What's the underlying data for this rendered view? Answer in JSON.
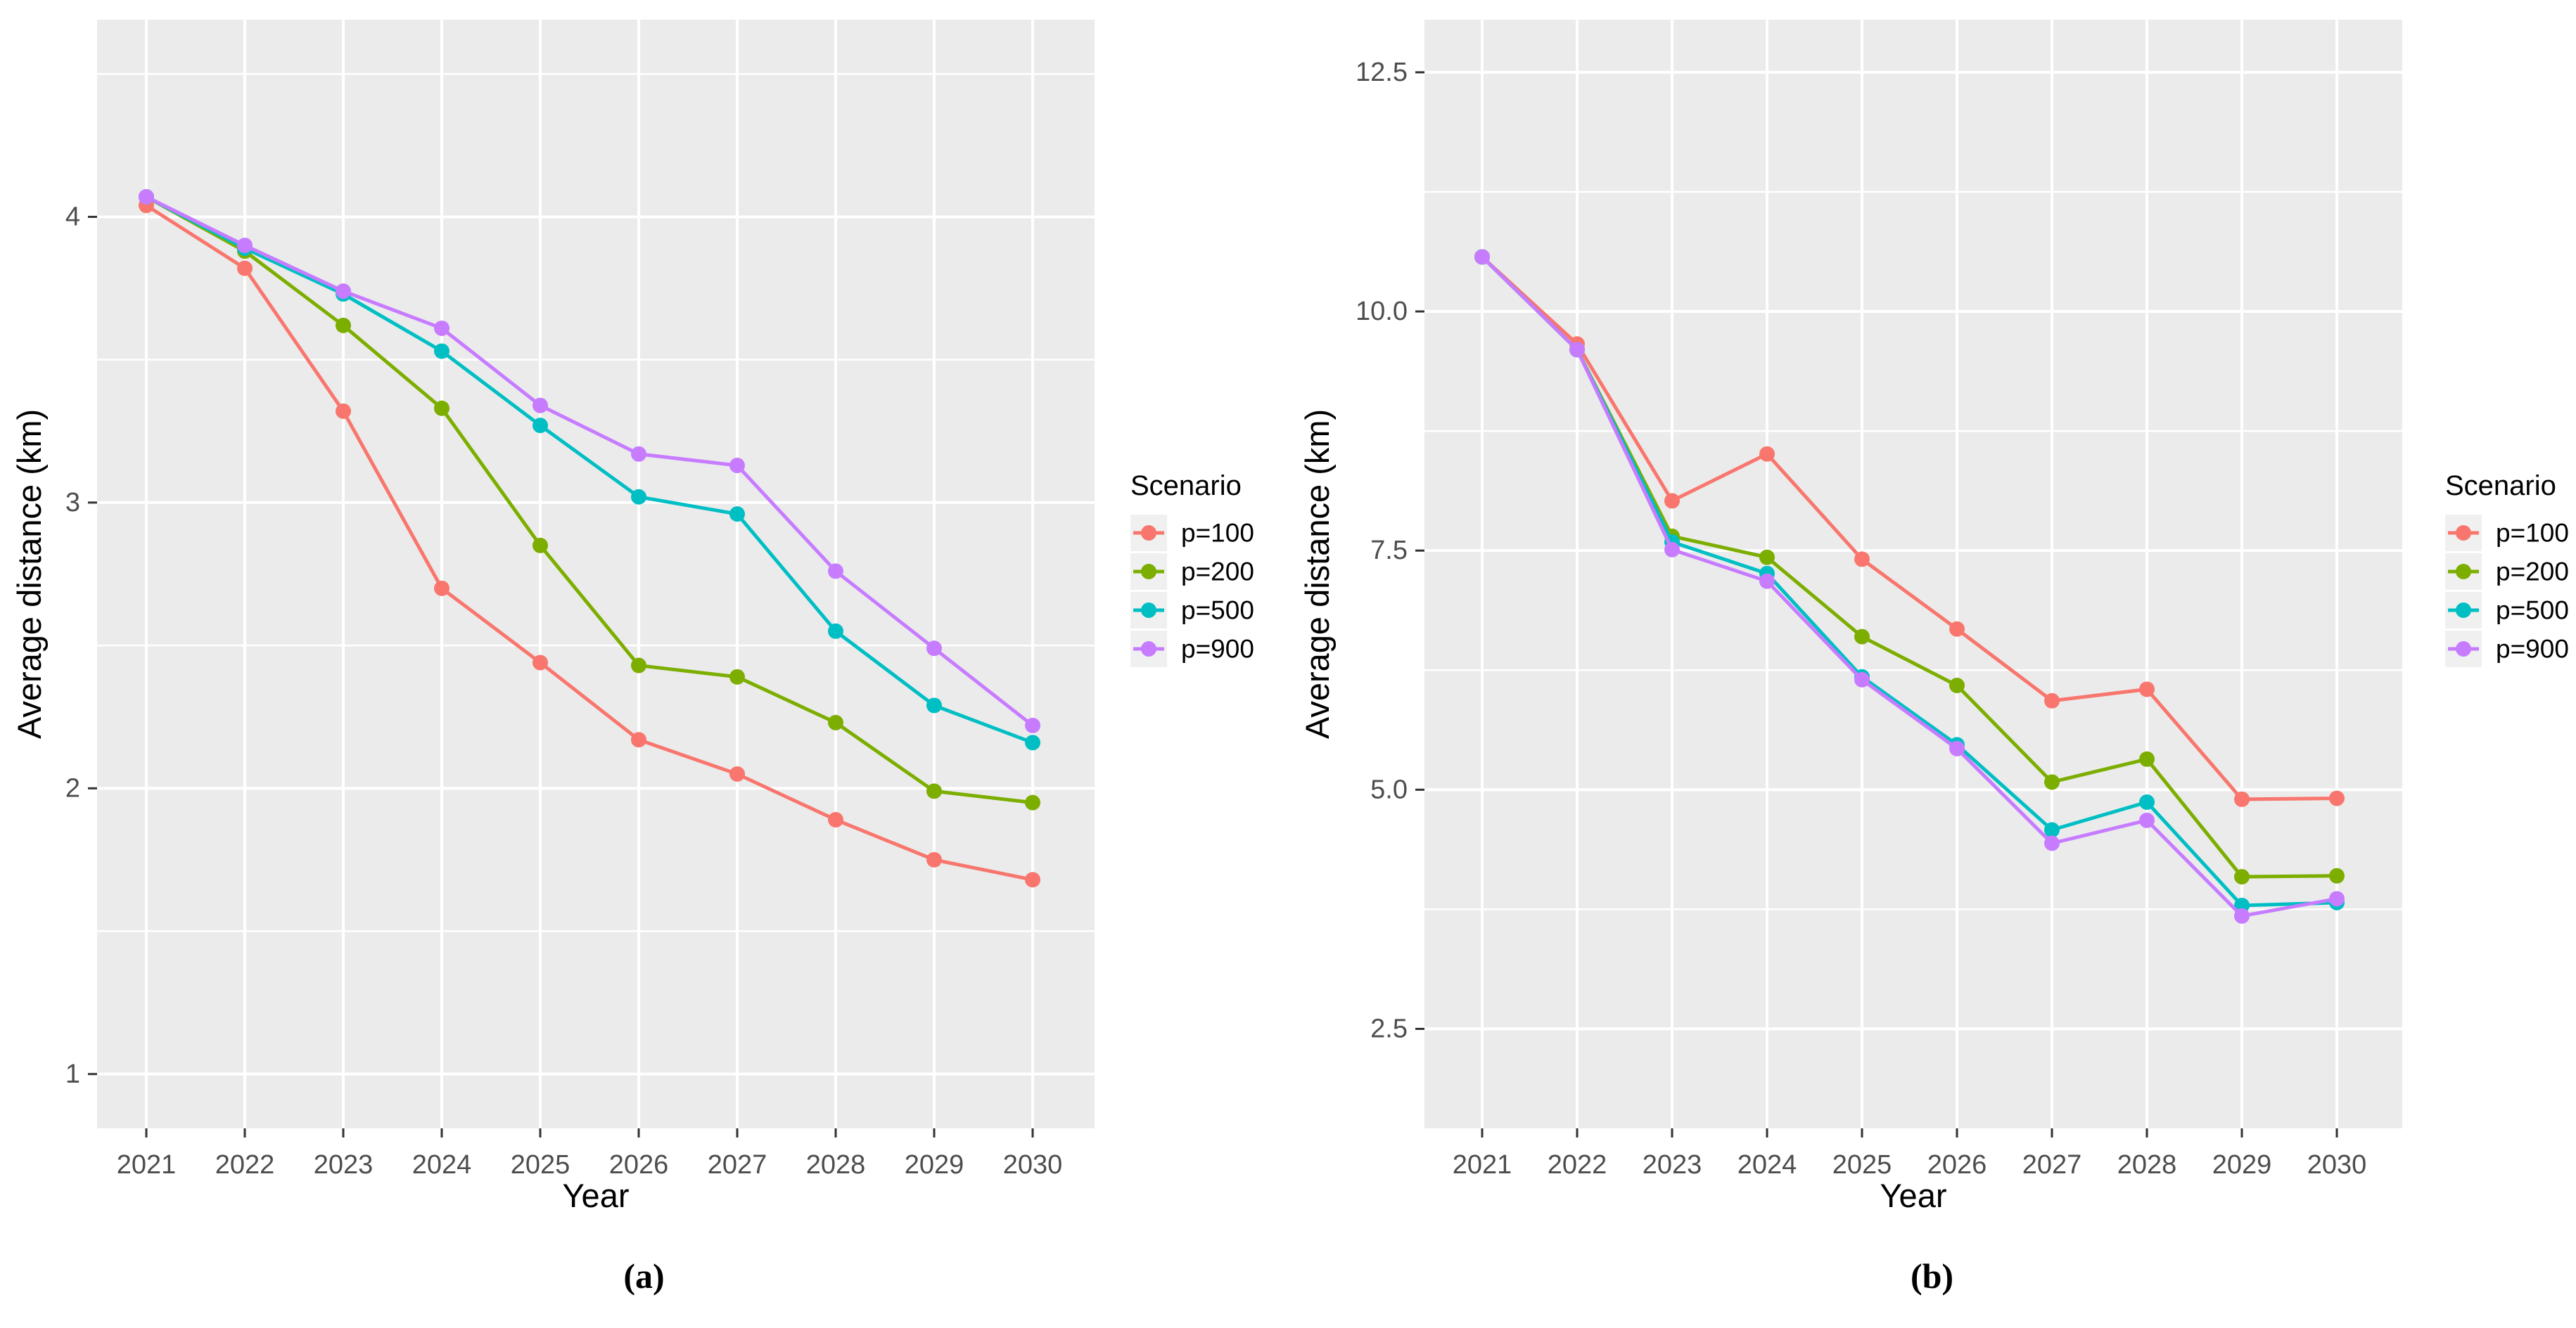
{
  "figure": {
    "background": "#FFFFFF",
    "panel_background": "#EBEBEB",
    "grid_color": "#FFFFFF",
    "tick_color": "#333333",
    "tick_label_color": "#4D4D4D",
    "axis_title_color": "#000000",
    "legend_key_background": "#F0F0F0",
    "series_colors": {
      "p=100": "#F8766D",
      "p=200": "#7CAE00",
      "p=500": "#00BFC4",
      "p=900": "#C77CFF"
    }
  },
  "chart_data": [
    {
      "type": "line",
      "panel": "a",
      "caption": "(a)",
      "title": "",
      "xlabel": "Year",
      "ylabel": "Average distance (km)",
      "categories": [
        "2021",
        "2022",
        "2023",
        "2024",
        "2025",
        "2026",
        "2027",
        "2028",
        "2029",
        "2030"
      ],
      "ylim": [
        0.81,
        4.69
      ],
      "y_major": [
        1,
        2,
        3,
        4
      ],
      "y_major_labels": [
        "1",
        "2",
        "3",
        "4"
      ],
      "y_minor": [
        1.5,
        2.5,
        3.5,
        4.5
      ],
      "grid": true,
      "legend_title": "Scenario",
      "legend_position": "right",
      "series": [
        {
          "name": "p=100",
          "color": "#F8766D",
          "values": [
            4.04,
            3.82,
            3.32,
            2.7,
            2.44,
            2.17,
            2.05,
            1.89,
            1.75,
            1.68
          ]
        },
        {
          "name": "p=200",
          "color": "#7CAE00",
          "values": [
            4.07,
            3.88,
            3.62,
            3.33,
            2.85,
            2.43,
            2.39,
            2.23,
            1.99,
            1.95
          ]
        },
        {
          "name": "p=500",
          "color": "#00BFC4",
          "values": [
            4.07,
            3.89,
            3.73,
            3.53,
            3.27,
            3.02,
            2.96,
            2.55,
            2.29,
            2.16
          ]
        },
        {
          "name": "p=900",
          "color": "#C77CFF",
          "values": [
            4.07,
            3.9,
            3.74,
            3.61,
            3.34,
            3.17,
            3.13,
            2.76,
            2.49,
            2.22
          ]
        }
      ]
    },
    {
      "type": "line",
      "panel": "b",
      "caption": "(b)",
      "title": "",
      "xlabel": "Year",
      "ylabel": "Average distance (km)",
      "categories": [
        "2021",
        "2022",
        "2023",
        "2024",
        "2025",
        "2026",
        "2027",
        "2028",
        "2029",
        "2030"
      ],
      "ylim": [
        1.46,
        13.05
      ],
      "y_major": [
        2.5,
        5.0,
        7.5,
        10.0,
        12.5
      ],
      "y_major_labels": [
        "2.5",
        "5.0",
        "7.5",
        "10.0",
        "12.5"
      ],
      "y_minor": [
        3.75,
        6.25,
        8.75,
        11.25
      ],
      "grid": true,
      "legend_title": "Scenario",
      "legend_position": "right",
      "series": [
        {
          "name": "p=100",
          "color": "#F8766D",
          "values": [
            10.57,
            9.66,
            8.02,
            8.51,
            7.41,
            6.68,
            5.93,
            6.05,
            4.9,
            4.91
          ]
        },
        {
          "name": "p=200",
          "color": "#7CAE00",
          "values": [
            10.57,
            9.6,
            7.65,
            7.43,
            6.6,
            6.09,
            5.08,
            5.32,
            4.09,
            4.1
          ]
        },
        {
          "name": "p=500",
          "color": "#00BFC4",
          "values": [
            10.57,
            9.6,
            7.59,
            7.26,
            6.18,
            5.47,
            4.58,
            4.87,
            3.79,
            3.82
          ]
        },
        {
          "name": "p=900",
          "color": "#C77CFF",
          "values": [
            10.57,
            9.6,
            7.51,
            7.18,
            6.15,
            5.43,
            4.44,
            4.68,
            3.68,
            3.86
          ]
        }
      ]
    }
  ]
}
